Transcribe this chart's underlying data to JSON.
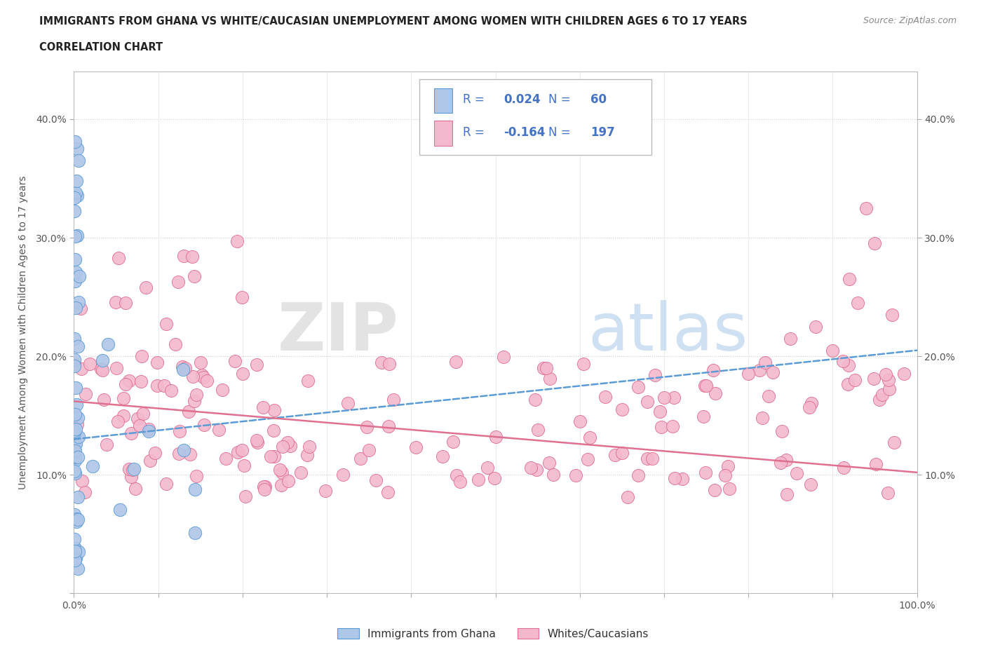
{
  "title_line1": "IMMIGRANTS FROM GHANA VS WHITE/CAUCASIAN UNEMPLOYMENT AMONG WOMEN WITH CHILDREN AGES 6 TO 17 YEARS",
  "title_line2": "CORRELATION CHART",
  "source_text": "Source: ZipAtlas.com",
  "ylabel": "Unemployment Among Women with Children Ages 6 to 17 years",
  "xlim": [
    0.0,
    1.0
  ],
  "ylim": [
    0.0,
    0.44
  ],
  "ghana_color": "#aec6e8",
  "ghana_edge_color": "#5b9bd5",
  "white_color": "#f4b8ce",
  "white_edge_color": "#e07090",
  "ghana_R": 0.024,
  "ghana_N": 60,
  "white_R": -0.164,
  "white_N": 197,
  "legend_text_color": "#4472c4",
  "background_color": "#ffffff",
  "grid_color": "#cccccc",
  "legend_ghana_label": "Immigrants from Ghana",
  "legend_white_label": "Whites/Caucasians",
  "ghana_trend_x0": 0.0,
  "ghana_trend_y0": 0.13,
  "ghana_trend_x1": 1.0,
  "ghana_trend_y1": 0.205,
  "white_trend_x0": 0.0,
  "white_trend_y0": 0.162,
  "white_trend_x1": 1.0,
  "white_trend_y1": 0.102
}
